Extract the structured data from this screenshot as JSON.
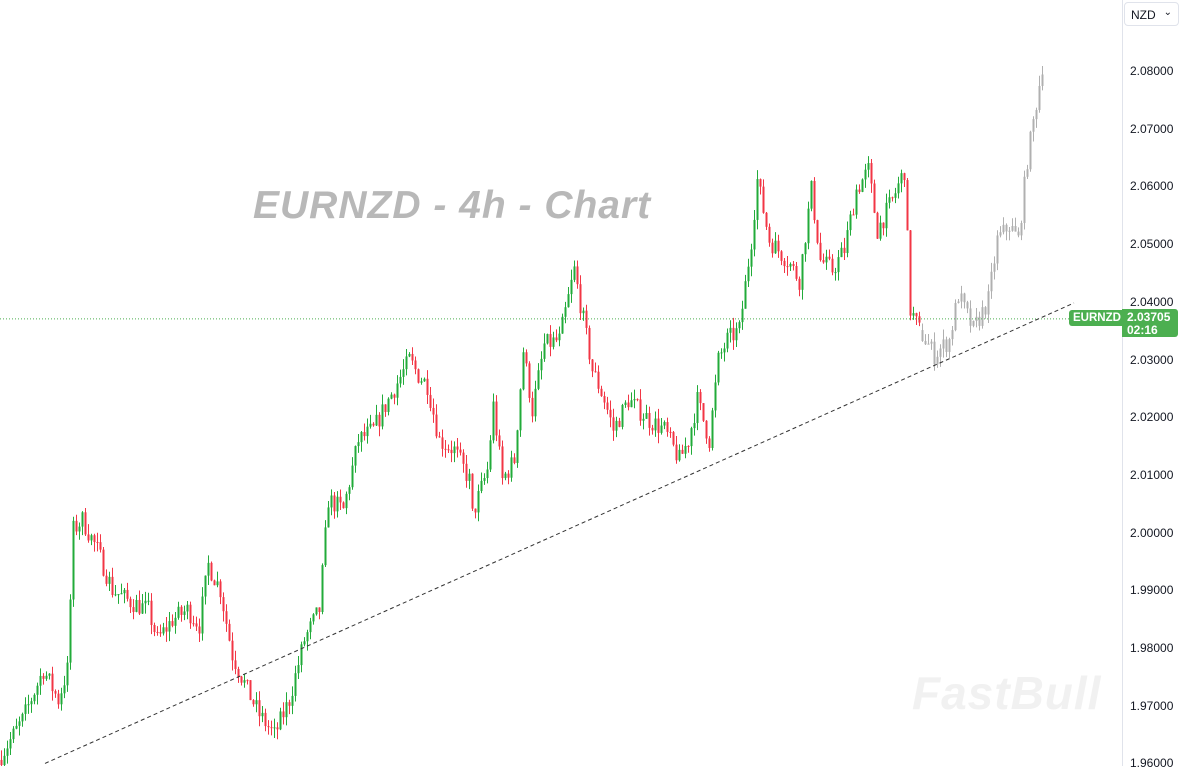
{
  "title": "EURNZD - 4h - Chart",
  "watermark": "FastBull",
  "currency_select": {
    "value": "NZD"
  },
  "current_price": {
    "symbol": "EURNZD",
    "price": "2.03705",
    "countdown": "02:16"
  },
  "colors": {
    "up": "#22ab3a",
    "down": "#f23645",
    "projection": "#b0b0b0",
    "price_label": "#4caf50"
  },
  "chart_data": {
    "type": "candlestick",
    "y_axis": {
      "ticks": [
        "2.08000",
        "2.07000",
        "2.06000",
        "2.05000",
        "2.04000",
        "2.03000",
        "2.02000",
        "2.01000",
        "2.00000",
        "1.99000",
        "1.98000",
        "1.97000",
        "1.96000"
      ],
      "ylim": [
        1.9595,
        2.0855
      ]
    },
    "xlabel": "",
    "ylabel": "",
    "grid": false,
    "series": [
      {
        "kind": "historical",
        "path": [
          [
            0,
            1.9606
          ],
          [
            8,
            1.9675
          ],
          [
            15,
            1.9762
          ],
          [
            20,
            1.971
          ],
          [
            23,
            1.9762
          ],
          [
            25,
            2.0005
          ],
          [
            28,
            2.0022
          ],
          [
            33,
            1.997
          ],
          [
            38,
            1.9901
          ],
          [
            43,
            1.9883
          ],
          [
            50,
            1.9866
          ],
          [
            53,
            1.9814
          ],
          [
            58,
            1.9849
          ],
          [
            63,
            1.9866
          ],
          [
            67,
            1.984
          ],
          [
            70,
            1.9944
          ],
          [
            74,
            1.9901
          ],
          [
            78,
            1.9788
          ],
          [
            83,
            1.9727
          ],
          [
            87,
            1.9684
          ],
          [
            92,
            1.9649
          ],
          [
            97,
            1.971
          ],
          [
            102,
            1.9814
          ],
          [
            107,
            1.9866
          ],
          [
            110,
            2.0057
          ],
          [
            115,
            2.0039
          ],
          [
            120,
            2.016
          ],
          [
            125,
            2.0178
          ],
          [
            130,
            2.023
          ],
          [
            137,
            2.0299
          ],
          [
            140,
            2.0273
          ],
          [
            143,
            2.0256
          ],
          [
            147,
            2.016
          ],
          [
            152,
            2.0143
          ],
          [
            157,
            2.0091
          ],
          [
            158,
            2.003
          ],
          [
            163,
            2.0108
          ],
          [
            165,
            2.022
          ],
          [
            168,
            2.0091
          ],
          [
            172,
            2.0126
          ],
          [
            175,
            2.0316
          ],
          [
            178,
            2.0212
          ],
          [
            182,
            2.0325
          ],
          [
            187,
            2.0334
          ],
          [
            192,
            2.0455
          ],
          [
            195,
            2.0368
          ],
          [
            198,
            2.0282
          ],
          [
            202,
            2.023
          ],
          [
            205,
            2.0178
          ],
          [
            210,
            2.023
          ],
          [
            217,
            2.0195
          ],
          [
            222,
            2.0178
          ],
          [
            227,
            2.0126
          ],
          [
            230,
            2.016
          ],
          [
            233,
            2.023
          ],
          [
            237,
            2.016
          ],
          [
            240,
            2.0299
          ],
          [
            243,
            2.0334
          ],
          [
            247,
            2.0351
          ],
          [
            251,
            2.0507
          ],
          [
            253,
            2.0611
          ],
          [
            257,
            2.0507
          ],
          [
            263,
            2.0472
          ],
          [
            267,
            2.0438
          ],
          [
            271,
            2.0594
          ],
          [
            274,
            2.0472
          ],
          [
            278,
            2.0455
          ],
          [
            282,
            2.049
          ],
          [
            286,
            2.0594
          ],
          [
            290,
            2.0628
          ],
          [
            293,
            2.0524
          ],
          [
            298,
            2.0576
          ],
          [
            302,
            2.0628
          ],
          [
            304,
            2.0386
          ],
          [
            307,
            2.0351
          ]
        ]
      },
      {
        "kind": "projection",
        "path": [
          [
            307,
            2.0351
          ],
          [
            312,
            2.0308
          ],
          [
            317,
            2.0334
          ],
          [
            320,
            2.0412
          ],
          [
            325,
            2.0351
          ],
          [
            330,
            2.0403
          ],
          [
            333,
            2.0507
          ],
          [
            337,
            2.0533
          ],
          [
            340,
            2.0507
          ],
          [
            343,
            2.0646
          ],
          [
            348,
            2.081
          ]
        ]
      }
    ],
    "trendline": {
      "style": "dashed",
      "from": [
        15,
        1.96
      ],
      "to": [
        358,
        2.0398
      ]
    },
    "price_line": {
      "value": 2.03705,
      "style": "dotted"
    }
  }
}
